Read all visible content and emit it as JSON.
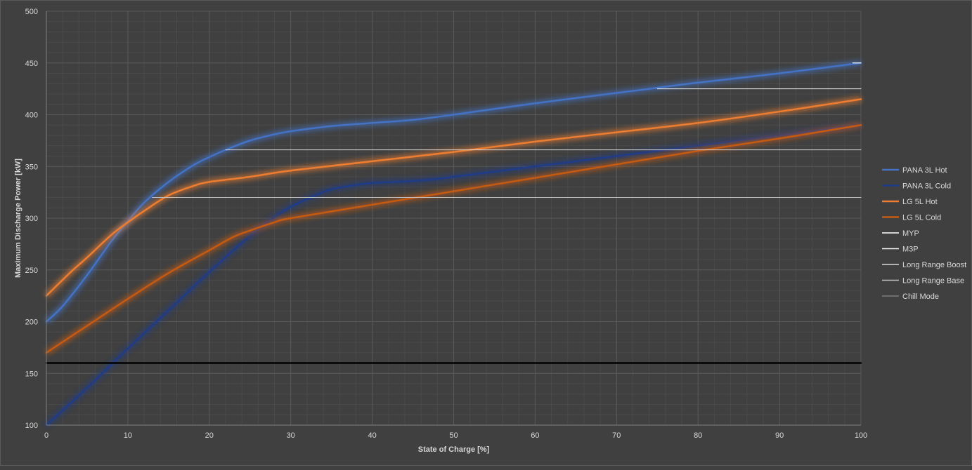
{
  "chart_data": {
    "type": "line",
    "title": "",
    "xlabel": "State of Charge [%]",
    "ylabel": "Maximum Discharge Power  [kW]",
    "xlim": [
      0,
      100
    ],
    "ylim": [
      100,
      500
    ],
    "xticks": [
      0,
      10,
      20,
      30,
      40,
      50,
      60,
      70,
      80,
      90,
      100
    ],
    "yticks": [
      100,
      150,
      200,
      250,
      300,
      350,
      400,
      450,
      500
    ],
    "grid": true,
    "legend_position": "right",
    "background_color": "#404040",
    "series": [
      {
        "name": "PANA 3L Hot",
        "color": "#4472c4",
        "glow": true,
        "x": [
          0,
          2,
          5,
          8,
          10,
          12,
          15,
          18,
          20,
          22,
          25,
          28,
          30,
          35,
          40,
          45,
          50,
          60,
          70,
          75,
          80,
          90,
          100
        ],
        "y": [
          200,
          215,
          245,
          278,
          297,
          315,
          335,
          351,
          359,
          366,
          375,
          381,
          384,
          389,
          392,
          395,
          400,
          411,
          421,
          426,
          431,
          440,
          450
        ]
      },
      {
        "name": "PANA 3L Cold",
        "color": "#1f3c88",
        "glow": true,
        "x": [
          0,
          5,
          10,
          15,
          20,
          25,
          28,
          30,
          33,
          35,
          38,
          40,
          45,
          48,
          50,
          55,
          60,
          70,
          80,
          90,
          100
        ],
        "y": [
          100,
          136,
          174,
          211,
          248,
          283,
          301,
          311,
          322,
          328,
          332,
          334,
          336,
          338,
          340,
          345,
          350,
          360,
          370,
          380,
          390
        ]
      },
      {
        "name": "LG 5L Hot",
        "color": "#ed7d31",
        "glow": true,
        "x": [
          0,
          3,
          5,
          8,
          10,
          12,
          15,
          18,
          20,
          25,
          30,
          40,
          50,
          60,
          70,
          80,
          90,
          100
        ],
        "y": [
          225,
          248,
          262,
          284,
          296,
          307,
          322,
          331,
          335,
          340,
          346,
          355,
          364,
          374,
          383,
          392,
          403,
          415
        ]
      },
      {
        "name": "LG 5L Cold",
        "color": "#c55a11",
        "glow": true,
        "x": [
          0,
          5,
          10,
          15,
          20,
          23,
          25,
          28,
          30,
          40,
          50,
          60,
          70,
          80,
          90,
          100
        ],
        "y": [
          170,
          196,
          222,
          247,
          269,
          282,
          288,
          296,
          300,
          313,
          326,
          339,
          352,
          365,
          377,
          390
        ]
      },
      {
        "name": "MYP",
        "color": "#ffffff",
        "width": 1.2,
        "x": [
          99,
          100
        ],
        "y": [
          450,
          450
        ]
      },
      {
        "name": "M3P",
        "color": "#f2f2f2",
        "width": 1.0,
        "x": [
          75,
          100
        ],
        "y": [
          425,
          425
        ]
      },
      {
        "name": "Long Range Boost",
        "color": "#d9d9d9",
        "width": 1.0,
        "x": [
          22,
          100
        ],
        "y": [
          366,
          366
        ]
      },
      {
        "name": "Long Range Base",
        "color": "#bfbfbf",
        "width": 1.0,
        "x": [
          13,
          100
        ],
        "y": [
          320,
          320
        ]
      },
      {
        "name": "Chill Mode",
        "color": "#000000",
        "legend_color": "#7f7f7f",
        "width": 2.5,
        "x": [
          0,
          100
        ],
        "y": [
          160,
          160
        ]
      }
    ]
  }
}
